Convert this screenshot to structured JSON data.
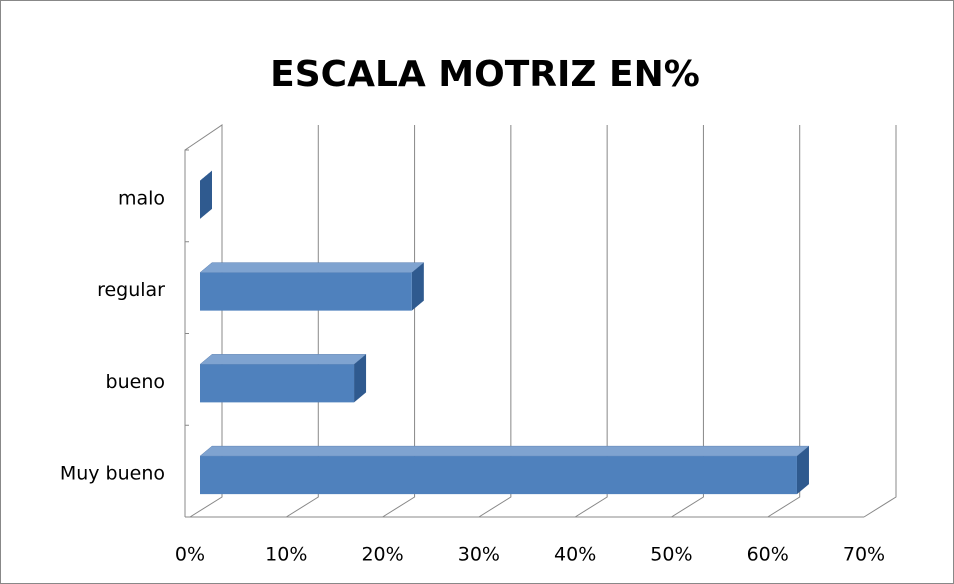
{
  "chart_data": {
    "type": "bar3d-horizontal",
    "title": "ESCALA MOTRIZ EN%",
    "categories": [
      "Muy bueno",
      "bueno",
      "regular",
      "malo"
    ],
    "values": [
      62,
      16,
      22,
      0
    ],
    "color": "#4f81bd",
    "xlim": [
      0,
      70
    ],
    "xticks": [
      {
        "value": 0,
        "label": "0%"
      },
      {
        "value": 10,
        "label": "10%"
      },
      {
        "value": 20,
        "label": "20%"
      },
      {
        "value": 30,
        "label": "30%"
      },
      {
        "value": 40,
        "label": "40%"
      },
      {
        "value": 50,
        "label": "50%"
      },
      {
        "value": 60,
        "label": "60%"
      },
      {
        "value": 70,
        "label": "70%"
      }
    ],
    "grid": true
  }
}
